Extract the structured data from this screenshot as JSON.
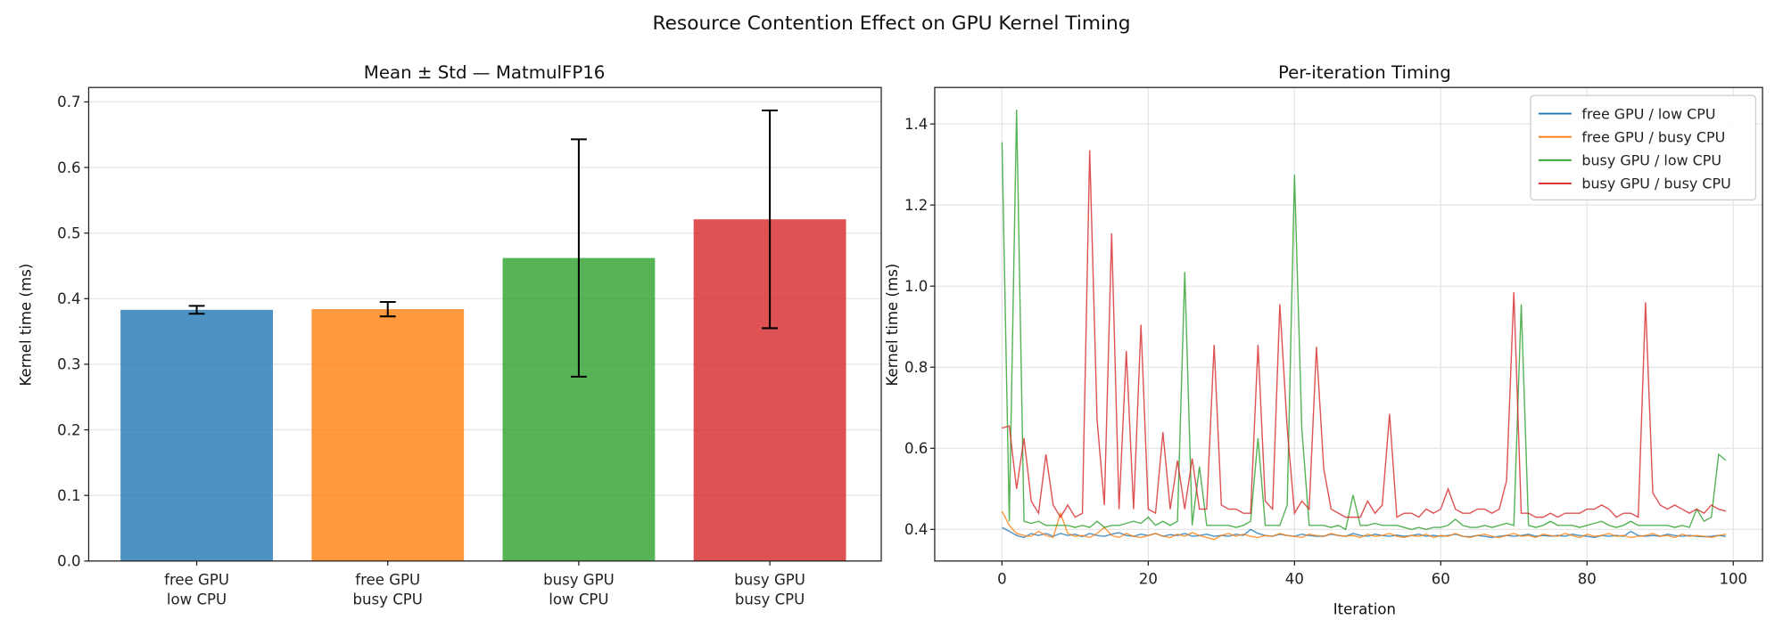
{
  "title": "Resource Contention Effect on GPU Kernel Timing",
  "colors": {
    "blue": "#1f77b4",
    "orange": "#ff7f0e",
    "green": "#2ca02c",
    "red": "#d62728"
  },
  "chart_data": [
    {
      "type": "bar",
      "title": "Mean ± Std — MatmulFP16",
      "xlabel": "",
      "ylabel": "Kernel time (ms)",
      "categories": [
        [
          "free GPU",
          "low CPU"
        ],
        [
          "free GPU",
          "busy CPU"
        ],
        [
          "busy GPU",
          "low CPU"
        ],
        [
          "busy GPU",
          "busy CPU"
        ]
      ],
      "values": [
        0.383,
        0.384,
        0.462,
        0.521
      ],
      "std": [
        0.006,
        0.011,
        0.181,
        0.166
      ],
      "ylim": [
        0,
        0.722
      ],
      "yticks": [
        "0.0",
        "0.1",
        "0.2",
        "0.3",
        "0.4",
        "0.5",
        "0.6",
        "0.7"
      ],
      "grid": true
    },
    {
      "type": "line",
      "title": "Per-iteration Timing",
      "xlabel": "Iteration",
      "ylabel": "Kernel time (ms)",
      "xlim": [
        -9.2,
        104
      ],
      "ylim": [
        0.322,
        1.49
      ],
      "xticks": [
        "0",
        "20",
        "40",
        "60",
        "80",
        "100"
      ],
      "yticks": [
        "0.4",
        "0.6",
        "0.8",
        "1.0",
        "1.2",
        "1.4"
      ],
      "grid": true,
      "legend": "top-right",
      "series": [
        {
          "name": "free GPU / low CPU",
          "values": [
            0.405,
            0.395,
            0.385,
            0.38,
            0.39,
            0.385,
            0.39,
            0.383,
            0.39,
            0.385,
            0.388,
            0.382,
            0.39,
            0.385,
            0.383,
            0.388,
            0.392,
            0.385,
            0.383,
            0.388,
            0.385,
            0.39,
            0.383,
            0.387,
            0.385,
            0.39,
            0.383,
            0.385,
            0.388,
            0.383,
            0.385,
            0.383,
            0.388,
            0.385,
            0.4,
            0.39,
            0.385,
            0.383,
            0.388,
            0.385,
            0.383,
            0.388,
            0.385,
            0.383,
            0.383,
            0.388,
            0.385,
            0.383,
            0.39,
            0.385,
            0.383,
            0.388,
            0.385,
            0.383,
            0.386,
            0.383,
            0.385,
            0.388,
            0.383,
            0.385,
            0.383,
            0.385,
            0.388,
            0.383,
            0.382,
            0.385,
            0.383,
            0.38,
            0.383,
            0.385,
            0.383,
            0.385,
            0.388,
            0.383,
            0.385,
            0.383,
            0.385,
            0.383,
            0.388,
            0.385,
            0.383,
            0.38,
            0.385,
            0.383,
            0.385,
            0.383,
            0.395,
            0.385,
            0.383,
            0.385,
            0.383,
            0.388,
            0.385,
            0.383,
            0.385,
            0.383,
            0.382,
            0.383,
            0.385,
            0.383
          ]
        },
        {
          "name": "free GPU / busy CPU",
          "values": [
            0.445,
            0.41,
            0.39,
            0.385,
            0.383,
            0.395,
            0.385,
            0.38,
            0.44,
            0.39,
            0.383,
            0.385,
            0.38,
            0.39,
            0.405,
            0.385,
            0.38,
            0.39,
            0.383,
            0.38,
            0.385,
            0.39,
            0.383,
            0.38,
            0.388,
            0.383,
            0.392,
            0.385,
            0.38,
            0.375,
            0.385,
            0.39,
            0.383,
            0.388,
            0.383,
            0.38,
            0.385,
            0.383,
            0.39,
            0.385,
            0.383,
            0.38,
            0.388,
            0.385,
            0.383,
            0.39,
            0.385,
            0.383,
            0.385,
            0.38,
            0.388,
            0.383,
            0.385,
            0.39,
            0.383,
            0.38,
            0.385,
            0.383,
            0.388,
            0.38,
            0.385,
            0.383,
            0.39,
            0.383,
            0.38,
            0.385,
            0.388,
            0.383,
            0.38,
            0.385,
            0.39,
            0.383,
            0.385,
            0.38,
            0.388,
            0.385,
            0.383,
            0.39,
            0.385,
            0.38,
            0.388,
            0.383,
            0.385,
            0.39,
            0.383,
            0.385,
            0.38,
            0.383,
            0.385,
            0.39,
            0.383,
            0.385,
            0.38,
            0.388,
            0.383,
            0.385,
            0.383,
            0.38,
            0.385,
            0.388
          ]
        },
        {
          "name": "busy GPU / low CPU",
          "values": [
            1.355,
            0.42,
            1.435,
            0.42,
            0.415,
            0.42,
            0.41,
            0.41,
            0.41,
            0.41,
            0.405,
            0.41,
            0.405,
            0.42,
            0.405,
            0.41,
            0.41,
            0.415,
            0.42,
            0.415,
            0.43,
            0.41,
            0.42,
            0.41,
            0.42,
            1.035,
            0.41,
            0.555,
            0.41,
            0.41,
            0.41,
            0.41,
            0.405,
            0.41,
            0.42,
            0.625,
            0.41,
            0.41,
            0.41,
            0.46,
            1.275,
            0.65,
            0.41,
            0.41,
            0.41,
            0.405,
            0.41,
            0.4,
            0.485,
            0.41,
            0.41,
            0.415,
            0.41,
            0.41,
            0.41,
            0.405,
            0.4,
            0.405,
            0.4,
            0.405,
            0.405,
            0.41,
            0.425,
            0.41,
            0.405,
            0.405,
            0.41,
            0.405,
            0.41,
            0.415,
            0.41,
            0.955,
            0.41,
            0.405,
            0.41,
            0.42,
            0.41,
            0.41,
            0.41,
            0.405,
            0.41,
            0.415,
            0.42,
            0.41,
            0.405,
            0.41,
            0.42,
            0.41,
            0.41,
            0.41,
            0.41,
            0.41,
            0.405,
            0.41,
            0.405,
            0.45,
            0.42,
            0.43,
            0.585,
            0.57
          ]
        },
        {
          "name": "busy GPU / busy CPU",
          "values": [
            0.65,
            0.655,
            0.5,
            0.625,
            0.47,
            0.44,
            0.585,
            0.46,
            0.43,
            0.46,
            0.43,
            0.44,
            1.335,
            0.67,
            0.46,
            1.13,
            0.45,
            0.84,
            0.45,
            0.905,
            0.45,
            0.44,
            0.64,
            0.45,
            0.57,
            0.45,
            0.575,
            0.45,
            0.45,
            0.855,
            0.46,
            0.45,
            0.45,
            0.44,
            0.44,
            0.855,
            0.47,
            0.45,
            0.955,
            0.65,
            0.44,
            0.47,
            0.45,
            0.85,
            0.55,
            0.45,
            0.44,
            0.43,
            0.43,
            0.43,
            0.47,
            0.44,
            0.46,
            0.685,
            0.43,
            0.44,
            0.44,
            0.43,
            0.45,
            0.44,
            0.45,
            0.5,
            0.45,
            0.44,
            0.44,
            0.45,
            0.45,
            0.44,
            0.45,
            0.52,
            0.985,
            0.44,
            0.44,
            0.43,
            0.43,
            0.44,
            0.43,
            0.44,
            0.44,
            0.44,
            0.45,
            0.45,
            0.46,
            0.45,
            0.43,
            0.44,
            0.44,
            0.43,
            0.96,
            0.49,
            0.46,
            0.45,
            0.46,
            0.45,
            0.44,
            0.45,
            0.44,
            0.46,
            0.45,
            0.445
          ]
        }
      ]
    }
  ]
}
